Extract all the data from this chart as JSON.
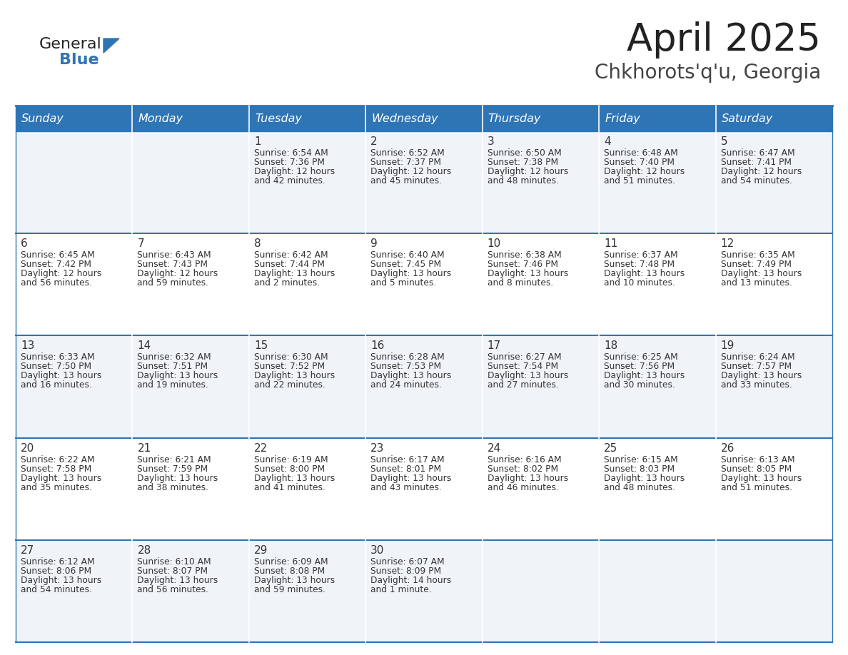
{
  "title": "April 2025",
  "subtitle": "Chkhorots'q'u, Georgia",
  "header_bg": "#2E75B6",
  "header_text_color": "#FFFFFF",
  "cell_bg_light": "#F0F4F8",
  "cell_bg_white": "#FFFFFF",
  "border_color": "#2E75B6",
  "text_color": "#333333",
  "days_of_week": [
    "Sunday",
    "Monday",
    "Tuesday",
    "Wednesday",
    "Thursday",
    "Friday",
    "Saturday"
  ],
  "calendar": [
    [
      {
        "day": "",
        "sunrise": "",
        "sunset": "",
        "daylight": ""
      },
      {
        "day": "",
        "sunrise": "",
        "sunset": "",
        "daylight": ""
      },
      {
        "day": "1",
        "sunrise": "Sunrise: 6:54 AM",
        "sunset": "Sunset: 7:36 PM",
        "daylight": "Daylight: 12 hours\nand 42 minutes."
      },
      {
        "day": "2",
        "sunrise": "Sunrise: 6:52 AM",
        "sunset": "Sunset: 7:37 PM",
        "daylight": "Daylight: 12 hours\nand 45 minutes."
      },
      {
        "day": "3",
        "sunrise": "Sunrise: 6:50 AM",
        "sunset": "Sunset: 7:38 PM",
        "daylight": "Daylight: 12 hours\nand 48 minutes."
      },
      {
        "day": "4",
        "sunrise": "Sunrise: 6:48 AM",
        "sunset": "Sunset: 7:40 PM",
        "daylight": "Daylight: 12 hours\nand 51 minutes."
      },
      {
        "day": "5",
        "sunrise": "Sunrise: 6:47 AM",
        "sunset": "Sunset: 7:41 PM",
        "daylight": "Daylight: 12 hours\nand 54 minutes."
      }
    ],
    [
      {
        "day": "6",
        "sunrise": "Sunrise: 6:45 AM",
        "sunset": "Sunset: 7:42 PM",
        "daylight": "Daylight: 12 hours\nand 56 minutes."
      },
      {
        "day": "7",
        "sunrise": "Sunrise: 6:43 AM",
        "sunset": "Sunset: 7:43 PM",
        "daylight": "Daylight: 12 hours\nand 59 minutes."
      },
      {
        "day": "8",
        "sunrise": "Sunrise: 6:42 AM",
        "sunset": "Sunset: 7:44 PM",
        "daylight": "Daylight: 13 hours\nand 2 minutes."
      },
      {
        "day": "9",
        "sunrise": "Sunrise: 6:40 AM",
        "sunset": "Sunset: 7:45 PM",
        "daylight": "Daylight: 13 hours\nand 5 minutes."
      },
      {
        "day": "10",
        "sunrise": "Sunrise: 6:38 AM",
        "sunset": "Sunset: 7:46 PM",
        "daylight": "Daylight: 13 hours\nand 8 minutes."
      },
      {
        "day": "11",
        "sunrise": "Sunrise: 6:37 AM",
        "sunset": "Sunset: 7:48 PM",
        "daylight": "Daylight: 13 hours\nand 10 minutes."
      },
      {
        "day": "12",
        "sunrise": "Sunrise: 6:35 AM",
        "sunset": "Sunset: 7:49 PM",
        "daylight": "Daylight: 13 hours\nand 13 minutes."
      }
    ],
    [
      {
        "day": "13",
        "sunrise": "Sunrise: 6:33 AM",
        "sunset": "Sunset: 7:50 PM",
        "daylight": "Daylight: 13 hours\nand 16 minutes."
      },
      {
        "day": "14",
        "sunrise": "Sunrise: 6:32 AM",
        "sunset": "Sunset: 7:51 PM",
        "daylight": "Daylight: 13 hours\nand 19 minutes."
      },
      {
        "day": "15",
        "sunrise": "Sunrise: 6:30 AM",
        "sunset": "Sunset: 7:52 PM",
        "daylight": "Daylight: 13 hours\nand 22 minutes."
      },
      {
        "day": "16",
        "sunrise": "Sunrise: 6:28 AM",
        "sunset": "Sunset: 7:53 PM",
        "daylight": "Daylight: 13 hours\nand 24 minutes."
      },
      {
        "day": "17",
        "sunrise": "Sunrise: 6:27 AM",
        "sunset": "Sunset: 7:54 PM",
        "daylight": "Daylight: 13 hours\nand 27 minutes."
      },
      {
        "day": "18",
        "sunrise": "Sunrise: 6:25 AM",
        "sunset": "Sunset: 7:56 PM",
        "daylight": "Daylight: 13 hours\nand 30 minutes."
      },
      {
        "day": "19",
        "sunrise": "Sunrise: 6:24 AM",
        "sunset": "Sunset: 7:57 PM",
        "daylight": "Daylight: 13 hours\nand 33 minutes."
      }
    ],
    [
      {
        "day": "20",
        "sunrise": "Sunrise: 6:22 AM",
        "sunset": "Sunset: 7:58 PM",
        "daylight": "Daylight: 13 hours\nand 35 minutes."
      },
      {
        "day": "21",
        "sunrise": "Sunrise: 6:21 AM",
        "sunset": "Sunset: 7:59 PM",
        "daylight": "Daylight: 13 hours\nand 38 minutes."
      },
      {
        "day": "22",
        "sunrise": "Sunrise: 6:19 AM",
        "sunset": "Sunset: 8:00 PM",
        "daylight": "Daylight: 13 hours\nand 41 minutes."
      },
      {
        "day": "23",
        "sunrise": "Sunrise: 6:17 AM",
        "sunset": "Sunset: 8:01 PM",
        "daylight": "Daylight: 13 hours\nand 43 minutes."
      },
      {
        "day": "24",
        "sunrise": "Sunrise: 6:16 AM",
        "sunset": "Sunset: 8:02 PM",
        "daylight": "Daylight: 13 hours\nand 46 minutes."
      },
      {
        "day": "25",
        "sunrise": "Sunrise: 6:15 AM",
        "sunset": "Sunset: 8:03 PM",
        "daylight": "Daylight: 13 hours\nand 48 minutes."
      },
      {
        "day": "26",
        "sunrise": "Sunrise: 6:13 AM",
        "sunset": "Sunset: 8:05 PM",
        "daylight": "Daylight: 13 hours\nand 51 minutes."
      }
    ],
    [
      {
        "day": "27",
        "sunrise": "Sunrise: 6:12 AM",
        "sunset": "Sunset: 8:06 PM",
        "daylight": "Daylight: 13 hours\nand 54 minutes."
      },
      {
        "day": "28",
        "sunrise": "Sunrise: 6:10 AM",
        "sunset": "Sunset: 8:07 PM",
        "daylight": "Daylight: 13 hours\nand 56 minutes."
      },
      {
        "day": "29",
        "sunrise": "Sunrise: 6:09 AM",
        "sunset": "Sunset: 8:08 PM",
        "daylight": "Daylight: 13 hours\nand 59 minutes."
      },
      {
        "day": "30",
        "sunrise": "Sunrise: 6:07 AM",
        "sunset": "Sunset: 8:09 PM",
        "daylight": "Daylight: 14 hours\nand 1 minute."
      },
      {
        "day": "",
        "sunrise": "",
        "sunset": "",
        "daylight": ""
      },
      {
        "day": "",
        "sunrise": "",
        "sunset": "",
        "daylight": ""
      },
      {
        "day": "",
        "sunrise": "",
        "sunset": "",
        "daylight": ""
      }
    ]
  ],
  "logo_color_general": "#222222",
  "logo_color_blue": "#2E75B6",
  "logo_triangle_color": "#2E75B6",
  "fig_width": 11.88,
  "fig_height": 9.18,
  "dpi": 100
}
